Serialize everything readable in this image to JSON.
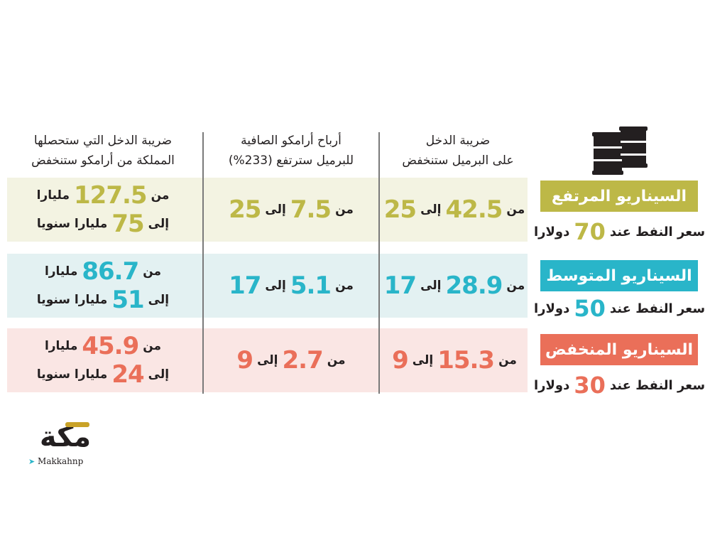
{
  "colors": {
    "high": "#bdb847",
    "mid": "#29b5c9",
    "low": "#ea6f59",
    "high_bg": "#f3f3e2",
    "mid_bg": "#e3f1f2",
    "low_bg": "#fae6e4",
    "text": "#231f20"
  },
  "icon": "oil-barrels-icon",
  "headers": {
    "tax_per_barrel": [
      "ضريبة الدخل",
      "على البرميل ستنخفض"
    ],
    "aramco_profit": [
      "أرباح أرامكو الصافية",
      "للبرميل سترتفع (233%)"
    ],
    "kingdom_tax": [
      "ضريبة الدخل التي ستحصلها",
      "المملكة من أرامكو ستنخفض"
    ]
  },
  "words": {
    "from": "من",
    "to": "إلى",
    "billion": "مليارا",
    "billion_yearly": "مليارا سنويا"
  },
  "scenarios": [
    {
      "name": "السيناريو المرتفع",
      "price_prefix": "سعر النفط عند",
      "price": "70",
      "price_unit": "دولارا",
      "tax_from": "42.5",
      "tax_to": "25",
      "profit_from": "7.5",
      "profit_to": "25",
      "kingdom_from": "127.5",
      "kingdom_to": "75"
    },
    {
      "name": "السيناريو المتوسط",
      "price_prefix": "سعر النفط عند",
      "price": "50",
      "price_unit": "دولارا",
      "tax_from": "28.9",
      "tax_to": "17",
      "profit_from": "5.1",
      "profit_to": "17",
      "kingdom_from": "86.7",
      "kingdom_to": "51"
    },
    {
      "name": "السيناريو المنخفض",
      "price_prefix": "سعر النفط عند",
      "price": "30",
      "price_unit": "دولارا",
      "tax_from": "15.3",
      "tax_to": "9",
      "profit_from": "2.7",
      "profit_to": "9",
      "kingdom_from": "45.9",
      "kingdom_to": "24"
    }
  ],
  "logo": {
    "wordmark": "مكة",
    "handle": "Makkahnp"
  },
  "chart_data": {
    "type": "table",
    "columns": [
      "ضريبة الدخل على البرميل ستنخفض",
      "أرباح أرامكو الصافية للبرميل سترتفع (233%)",
      "ضريبة الدخل التي ستحصلها المملكة من أرامكو ستنخفض"
    ],
    "rows": [
      {
        "scenario": "السيناريو المرتفع",
        "oil_price": 70,
        "tax_per_barrel": [
          42.5,
          25
        ],
        "aramco_profit": [
          7.5,
          25
        ],
        "kingdom_tax": [
          127.5,
          75
        ]
      },
      {
        "scenario": "السيناريو المتوسط",
        "oil_price": 50,
        "tax_per_barrel": [
          28.9,
          17
        ],
        "aramco_profit": [
          5.1,
          17
        ],
        "kingdom_tax": [
          86.7,
          51
        ]
      },
      {
        "scenario": "السيناريو المنخفض",
        "oil_price": 30,
        "tax_per_barrel": [
          15.3,
          9
        ],
        "aramco_profit": [
          2.7,
          9
        ],
        "kingdom_tax": [
          45.9,
          24
        ]
      }
    ]
  }
}
